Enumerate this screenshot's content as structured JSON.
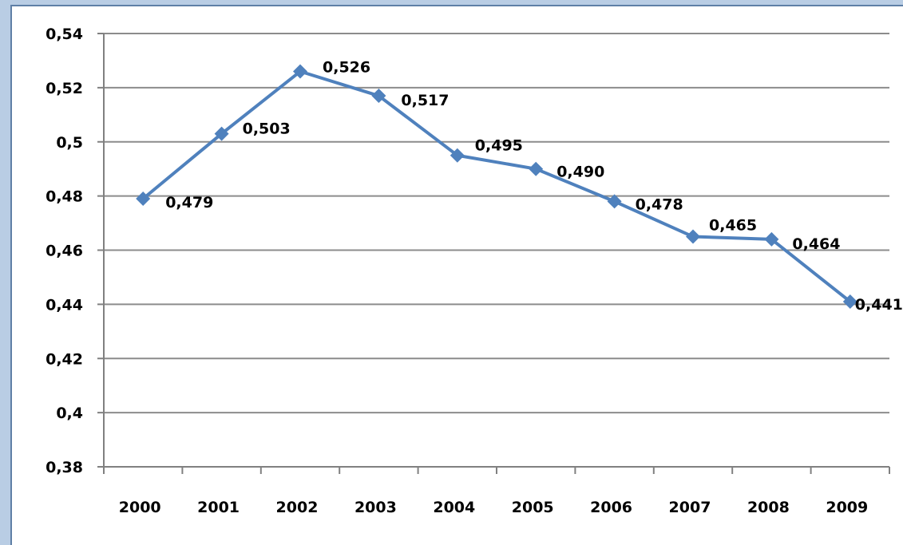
{
  "chart_data": {
    "type": "line",
    "categories": [
      "2000",
      "2001",
      "2002",
      "2003",
      "2004",
      "2005",
      "2006",
      "2007",
      "2008",
      "2009"
    ],
    "series": [
      {
        "values": [
          0.479,
          0.503,
          0.526,
          0.517,
          0.495,
          0.49,
          0.478,
          0.465,
          0.464,
          0.441
        ],
        "labels": [
          "0,479",
          "0,503",
          "0,526",
          "0,517",
          "0,495",
          "0,490",
          "0,478",
          "0,465",
          "0,464",
          "0,441"
        ]
      }
    ],
    "y_ticks": [
      0.38,
      0.4,
      0.42,
      0.44,
      0.46,
      0.48,
      0.5,
      0.52,
      0.54
    ],
    "y_tick_labels": [
      "0,38",
      "0,4",
      "0,42",
      "0,44",
      "0,46",
      "0,48",
      "0,5",
      "0,52",
      "0,54"
    ],
    "ylim": [
      0.38,
      0.54
    ],
    "grid": true,
    "legend": "none",
    "colors": {
      "line": "#4f81bd",
      "grid": "#8c8c8c",
      "axis": "#808080",
      "background": "#b9cde4"
    }
  }
}
